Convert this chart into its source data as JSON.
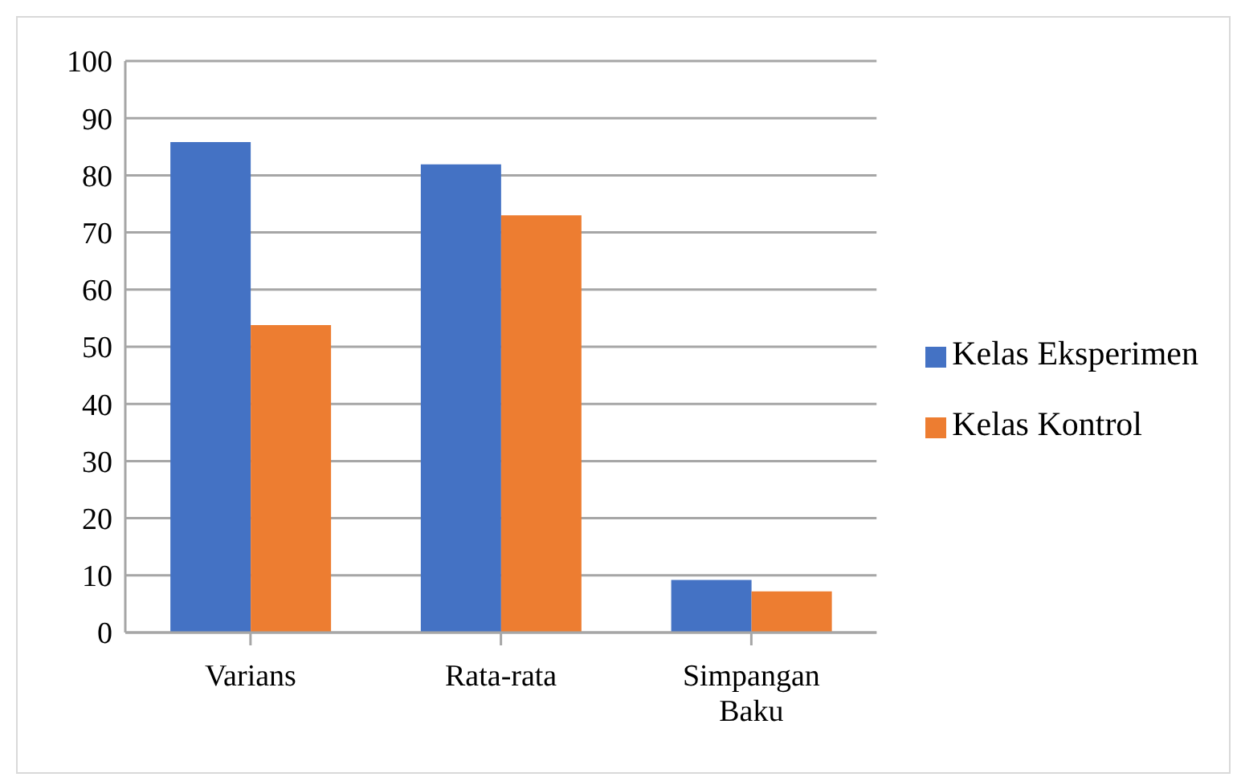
{
  "chart_data": {
    "type": "bar",
    "categories": [
      "Varians",
      "Rata-rata",
      "Simpangan Baku"
    ],
    "series": [
      {
        "name": "Kelas Eksperimen",
        "color": "#4472c4",
        "values": [
          85.8,
          81.9,
          9.2
        ]
      },
      {
        "name": "Kelas Kontrol",
        "color": "#ed7d31",
        "values": [
          53.8,
          73,
          7.2
        ]
      }
    ],
    "ylim": [
      0,
      100
    ],
    "yticks": [
      0,
      10,
      20,
      30,
      40,
      50,
      60,
      70,
      80,
      90,
      100
    ],
    "grid": "y",
    "legend": "right"
  }
}
